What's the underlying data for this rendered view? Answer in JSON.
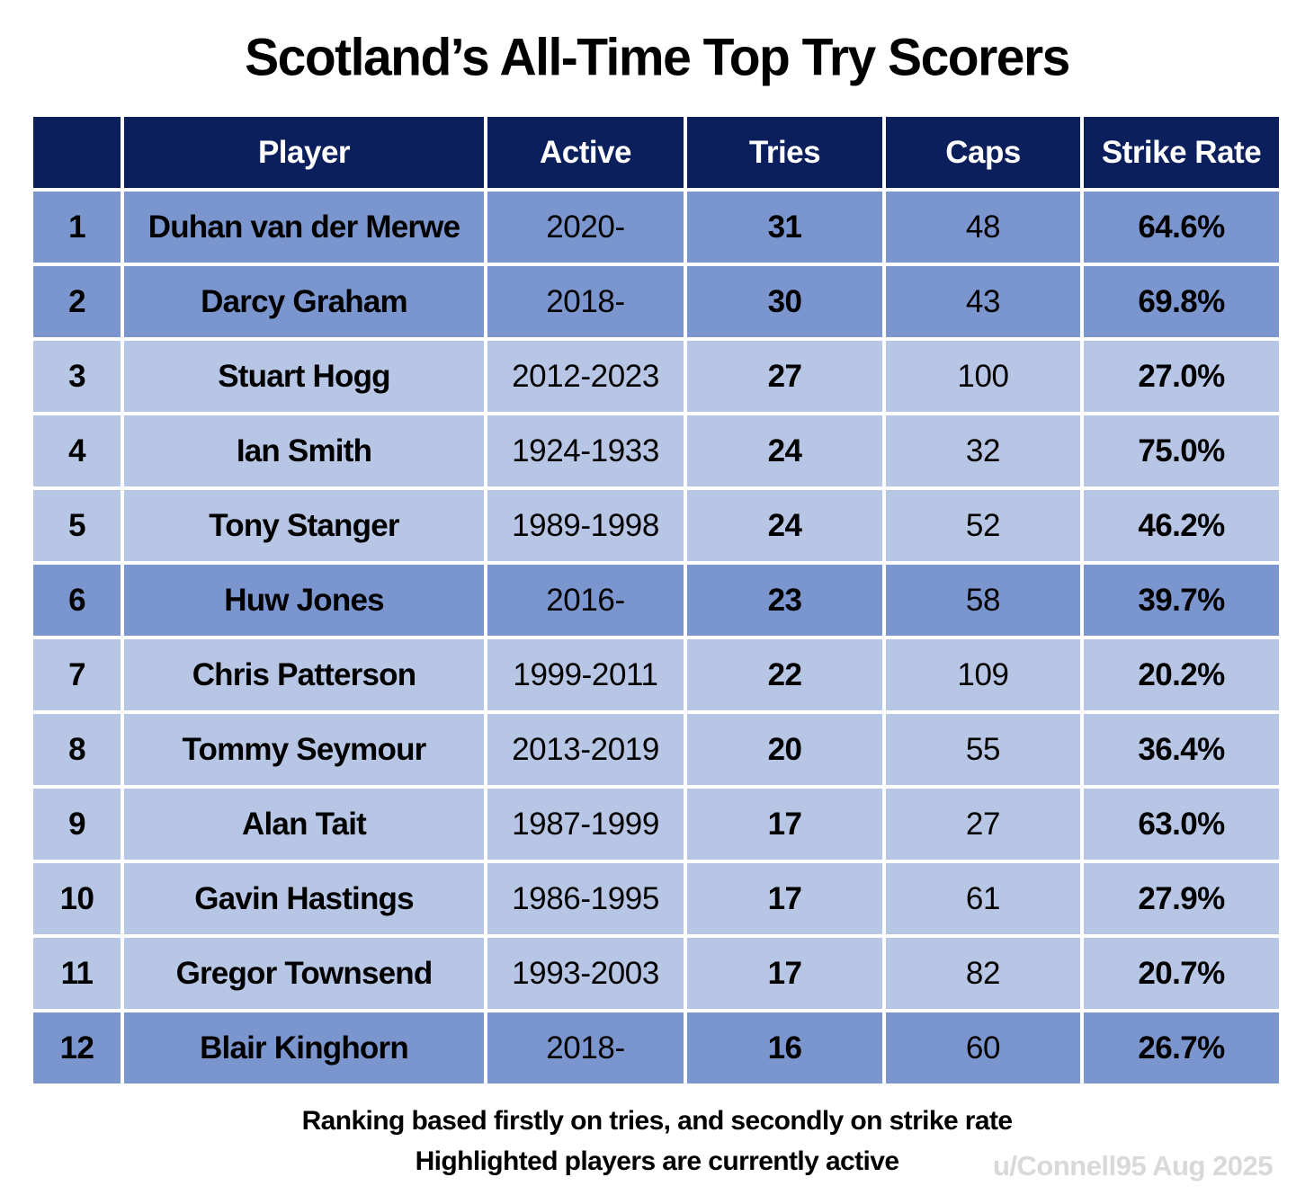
{
  "chart_data": {
    "type": "table",
    "title": "Scotland’s All-Time Top Try Scorers",
    "columns": [
      "",
      "Player",
      "Active",
      "Tries",
      "Caps",
      "Strike Rate"
    ],
    "rows": [
      {
        "rank": "1",
        "player": "Duhan van der Merwe",
        "active": "2020-",
        "tries": 31,
        "caps": 48,
        "strike_rate": "64.6%",
        "currently_active": true
      },
      {
        "rank": "2",
        "player": "Darcy Graham",
        "active": "2018-",
        "tries": 30,
        "caps": 43,
        "strike_rate": "69.8%",
        "currently_active": true
      },
      {
        "rank": "3",
        "player": "Stuart Hogg",
        "active": "2012-2023",
        "tries": 27,
        "caps": 100,
        "strike_rate": "27.0%",
        "currently_active": false
      },
      {
        "rank": "4",
        "player": "Ian Smith",
        "active": "1924-1933",
        "tries": 24,
        "caps": 32,
        "strike_rate": "75.0%",
        "currently_active": false
      },
      {
        "rank": "5",
        "player": "Tony Stanger",
        "active": "1989-1998",
        "tries": 24,
        "caps": 52,
        "strike_rate": "46.2%",
        "currently_active": false
      },
      {
        "rank": "6",
        "player": "Huw Jones",
        "active": "2016-",
        "tries": 23,
        "caps": 58,
        "strike_rate": "39.7%",
        "currently_active": true
      },
      {
        "rank": "7",
        "player": "Chris Patterson",
        "active": "1999-2011",
        "tries": 22,
        "caps": 109,
        "strike_rate": "20.2%",
        "currently_active": false
      },
      {
        "rank": "8",
        "player": "Tommy Seymour",
        "active": "2013-2019",
        "tries": 20,
        "caps": 55,
        "strike_rate": "36.4%",
        "currently_active": false
      },
      {
        "rank": "9",
        "player": "Alan Tait",
        "active": "1987-1999",
        "tries": 17,
        "caps": 27,
        "strike_rate": "63.0%",
        "currently_active": false
      },
      {
        "rank": "10",
        "player": "Gavin Hastings",
        "active": "1986-1995",
        "tries": 17,
        "caps": 61,
        "strike_rate": "27.9%",
        "currently_active": false
      },
      {
        "rank": "11",
        "player": "Gregor Townsend",
        "active": "1993-2003",
        "tries": 17,
        "caps": 82,
        "strike_rate": "20.7%",
        "currently_active": false
      },
      {
        "rank": "12",
        "player": "Blair Kinghorn",
        "active": "2018-",
        "tries": 16,
        "caps": 60,
        "strike_rate": "26.7%",
        "currently_active": true
      }
    ],
    "notes": [
      "Ranking based firstly on tries, and secondly on strike rate",
      "Highlighted players are currently active"
    ],
    "credit": "u/Connell95 Aug 2025"
  },
  "colors": {
    "header_bg": "#0b1f5c",
    "header_text": "#ffffff",
    "active_row_bg": "#7b95ce",
    "inactive_row_bg": "#b8c6e6",
    "credit_text": "#d9d9d9"
  }
}
